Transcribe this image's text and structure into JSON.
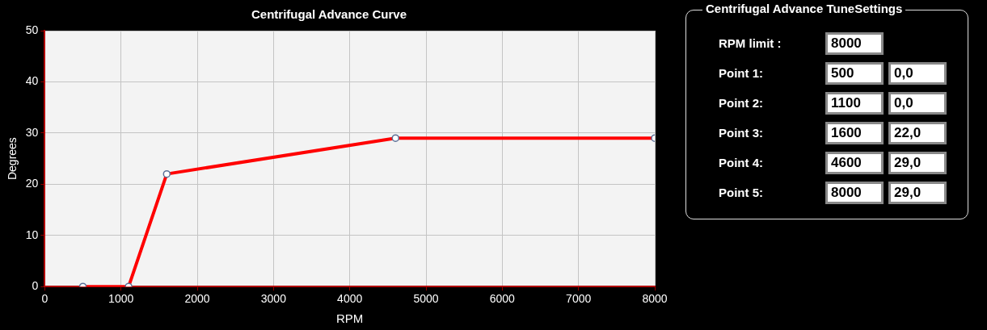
{
  "chart_data": [
    {
      "type": "line",
      "title": "Centrifugal Advance Curve",
      "xlabel": "RPM",
      "ylabel": "Degrees",
      "x": [
        500,
        1100,
        1600,
        4600,
        8000
      ],
      "series": [
        {
          "color": "#ff0000",
          "values": [
            0,
            0,
            22,
            29,
            29
          ]
        }
      ],
      "xlim": [
        0,
        8000
      ],
      "xticks": [
        0,
        1000,
        2000,
        3000,
        4000,
        5000,
        6000,
        7000,
        8000
      ],
      "ylim": [
        0,
        50
      ],
      "yticks": [
        0,
        10,
        20,
        30,
        40,
        50
      ],
      "grid": true,
      "marker": "circle"
    },
    {
      "type": "other",
      "title": "Centrifugal Advance TuneSettings",
      "annotations": [
        "RPM limit :",
        "8000",
        "Point 1:",
        "500",
        "0,0",
        "Point 2:",
        "1100",
        "0,0",
        "Point 3:",
        "1600",
        "22,0",
        "Point 4:",
        "4600",
        "29,0",
        "Point 5:",
        "8000",
        "29,0"
      ]
    }
  ]
}
